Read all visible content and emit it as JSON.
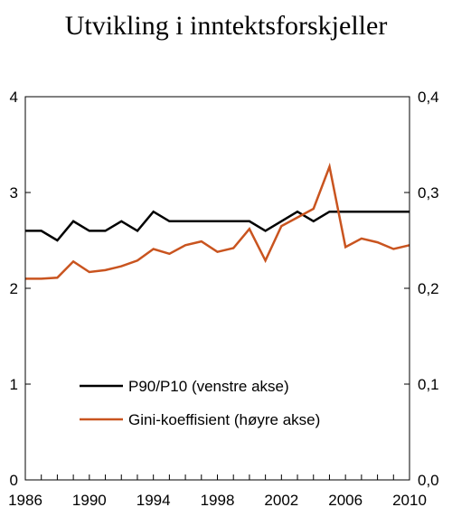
{
  "chart_data": {
    "type": "line",
    "title": "Utvikling i inntektsforskjeller",
    "xlabel": "",
    "ylabel_left": "",
    "ylabel_right": "",
    "x_ticks": [
      "1986",
      "1990",
      "1994",
      "1998",
      "2002",
      "2006",
      "2010"
    ],
    "y_left_ticks": [
      "0",
      "1",
      "2",
      "3",
      "4"
    ],
    "y_right_ticks": [
      "0,0",
      "0,1",
      "0,2",
      "0,3",
      "0,4"
    ],
    "xlim": [
      1986,
      2010
    ],
    "ylim_left": [
      0,
      4
    ],
    "ylim_right": [
      0,
      0.4
    ],
    "grid": false,
    "legend_position": "lower-center",
    "series": [
      {
        "name": "P90/P10 (venstre akse)",
        "axis": "left",
        "color": "#000000",
        "x": [
          1986,
          1987,
          1988,
          1989,
          1990,
          1991,
          1992,
          1993,
          1994,
          1995,
          1996,
          1997,
          1998,
          1999,
          2000,
          2001,
          2002,
          2003,
          2004,
          2005,
          2006,
          2007,
          2008,
          2009,
          2010
        ],
        "y": [
          2.6,
          2.6,
          2.5,
          2.7,
          2.6,
          2.6,
          2.7,
          2.6,
          2.8,
          2.7,
          2.7,
          2.7,
          2.7,
          2.7,
          2.7,
          2.6,
          2.7,
          2.8,
          2.7,
          2.8,
          2.8,
          2.8,
          2.8,
          2.8,
          2.8
        ]
      },
      {
        "name": "Gini-koeffisient (høyre akse)",
        "axis": "right",
        "color": "#c9541f",
        "x": [
          1986,
          1987,
          1988,
          1989,
          1990,
          1991,
          1992,
          1993,
          1994,
          1995,
          1996,
          1997,
          1998,
          1999,
          2000,
          2001,
          2002,
          2003,
          2004,
          2005,
          2006,
          2007,
          2008,
          2009,
          2010
        ],
        "y": [
          0.21,
          0.21,
          0.211,
          0.228,
          0.217,
          0.219,
          0.223,
          0.229,
          0.241,
          0.236,
          0.245,
          0.249,
          0.238,
          0.242,
          0.262,
          0.229,
          0.265,
          0.274,
          0.283,
          0.327,
          0.243,
          0.252,
          0.248,
          0.241,
          0.245
        ]
      }
    ]
  }
}
